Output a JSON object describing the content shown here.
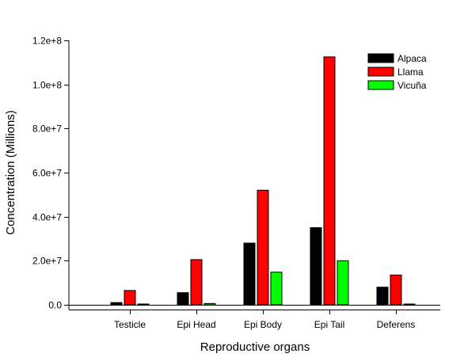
{
  "chart_data": {
    "type": "bar",
    "xlabel": "Reproductive organs",
    "ylabel": "Concentration (Millions)",
    "ylim": [
      0,
      120000000
    ],
    "yticks": [
      0,
      20000000,
      40000000,
      60000000,
      80000000,
      100000000,
      120000000
    ],
    "ytick_labels": [
      "0.0",
      "2.0e+7",
      "4.0e+7",
      "6.0e+7",
      "8.0e+7",
      "1.0e+8",
      "1.2e+8"
    ],
    "categories": [
      "Testicle",
      "Epi Head",
      "Epi Body",
      "Epi Tail",
      "Deferens"
    ],
    "series": [
      {
        "name": "Alpaca",
        "color": "#000000",
        "values": [
          1000000,
          5500000,
          28000000,
          35000000,
          8000000
        ]
      },
      {
        "name": "Llama",
        "color": "#ff0000",
        "values": [
          6500000,
          20500000,
          52000000,
          112500000,
          13500000
        ]
      },
      {
        "name": "Vicuña",
        "color": "#00ff00",
        "values": [
          300000,
          600000,
          14800000,
          20000000,
          300000
        ]
      }
    ],
    "legend_position": "top-right",
    "grid": false
  }
}
